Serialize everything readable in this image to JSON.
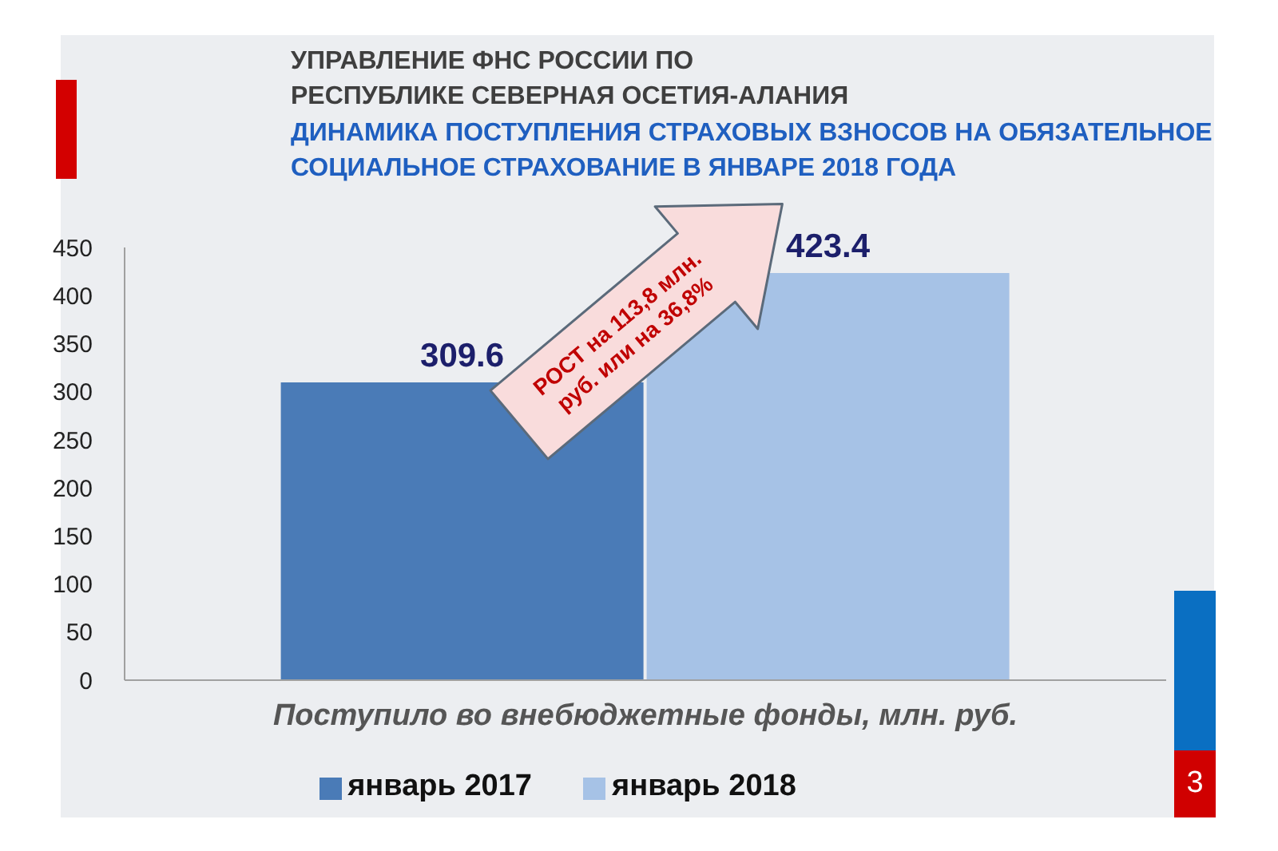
{
  "chart_data": {
    "type": "bar",
    "title": "ДИНАМИКА ПОСТУПЛЕНИЯ СТРАХОВЫХ ВЗНОСОВ НА ОБЯЗАТЕЛЬНОЕ СОЦИАЛЬНОЕ СТРАХОВАНИЕ В ЯНВАРЕ 2018 ГОДА",
    "subtitle": "УПРАВЛЕНИЕ ФНС РОССИИ ПО РЕСПУБЛИКЕ СЕВЕРНАЯ ОСЕТИЯ-АЛАНИЯ",
    "categories": [
      "Поступило во внебюджетные фонды, млн. руб."
    ],
    "series": [
      {
        "name": "январь 2017",
        "color": "#4a7bb7",
        "values": [
          309.6
        ]
      },
      {
        "name": "январь 2018",
        "color": "#a6c2e6",
        "values": [
          423.4
        ]
      }
    ],
    "ylim": [
      0,
      450
    ],
    "yticks": [
      0,
      50,
      100,
      150,
      200,
      250,
      300,
      350,
      400,
      450
    ],
    "legend": "bottom",
    "data_labels": true,
    "annotations": [
      "РОСТ на 113,8 млн. руб. или на 36,8%",
      "3"
    ]
  }
}
